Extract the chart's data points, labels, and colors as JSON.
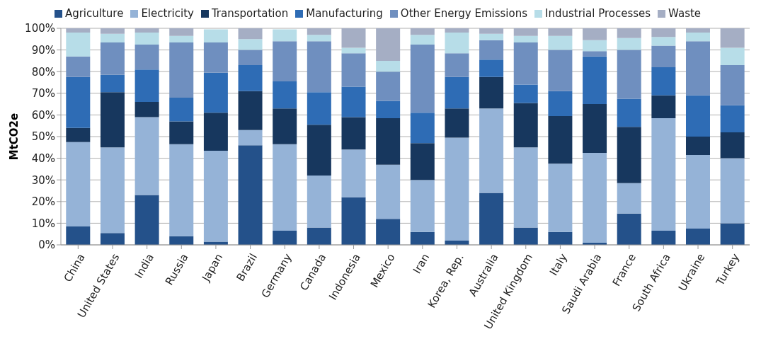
{
  "chart_data": {
    "type": "bar",
    "stacked": true,
    "ylabel": "MtCO2e",
    "legend": "top",
    "grid": "y",
    "categories": [
      "China",
      "United States",
      "India",
      "Russia",
      "Japan",
      "Brazil",
      "Germany",
      "Canada",
      "Indonesia",
      "Mexico",
      "Iran",
      "Korea, Rep.",
      "Australia",
      "United Kingdom",
      "Italy",
      "Saudi Arabia",
      "France",
      "South Africa",
      "Ukraine",
      "Turkey"
    ],
    "ylim": [
      0,
      100
    ],
    "yticks": [
      {
        "value": 0,
        "label": "0%"
      },
      {
        "value": 10,
        "label": "10%"
      },
      {
        "value": 20,
        "label": "20%"
      },
      {
        "value": 30,
        "label": "30%"
      },
      {
        "value": 40,
        "label": "40%"
      },
      {
        "value": 50,
        "label": "50%"
      },
      {
        "value": 60,
        "label": "60%"
      },
      {
        "value": 70,
        "label": "70%"
      },
      {
        "value": 80,
        "label": "80%"
      },
      {
        "value": 90,
        "label": "90%"
      },
      {
        "value": 100,
        "label": "100%"
      }
    ],
    "series": [
      {
        "name": "Agriculture",
        "color": "#24518a",
        "values": [
          8.5,
          5.5,
          23,
          4,
          1.5,
          46,
          6.5,
          8,
          22,
          12,
          6,
          2,
          24,
          8,
          6,
          1,
          14.5,
          6.5,
          7.5,
          10
        ]
      },
      {
        "name": "Electricity",
        "color": "#95b3d7",
        "values": [
          39,
          39.5,
          36,
          42.5,
          42,
          7,
          40,
          24,
          22,
          25,
          24,
          47.5,
          39,
          37,
          31.5,
          41.5,
          14,
          52,
          34,
          30
        ]
      },
      {
        "name": "Transportation",
        "color": "#17375e",
        "values": [
          6.5,
          25.5,
          7,
          10.5,
          17.5,
          18,
          16.5,
          23.5,
          15,
          21.5,
          17,
          13.5,
          14.5,
          20.5,
          22,
          22.5,
          26,
          10.5,
          8.5,
          12
        ]
      },
      {
        "name": "Manufacturing",
        "color": "#2e6cb5",
        "values": [
          23.5,
          8,
          15,
          11,
          18.5,
          12,
          12.5,
          15,
          14,
          8,
          14,
          14.5,
          8,
          8.5,
          11.5,
          22,
          13,
          13,
          19,
          12.5
        ]
      },
      {
        "name": "Other Energy Emissions",
        "color": "#6f8fbf",
        "values": [
          9.5,
          15,
          11.5,
          25.5,
          14,
          7,
          18.5,
          23.5,
          15.5,
          13.5,
          31.5,
          11,
          9,
          19.5,
          19,
          2.5,
          22.5,
          10,
          25,
          18.5
        ]
      },
      {
        "name": "Industrial Processes",
        "color": "#b7dde8",
        "values": [
          11,
          4,
          5.5,
          3,
          6,
          5,
          5.5,
          3,
          2.5,
          5,
          4.5,
          9.5,
          3,
          3,
          6.5,
          5,
          5.5,
          4,
          4,
          8
        ]
      },
      {
        "name": "Waste",
        "color": "#a5aec4",
        "values": [
          2,
          2.5,
          2,
          3.5,
          null,
          5,
          null,
          3,
          9,
          15,
          3,
          2,
          2.5,
          3.5,
          3.5,
          5.5,
          4.5,
          4,
          2,
          9
        ]
      }
    ]
  }
}
